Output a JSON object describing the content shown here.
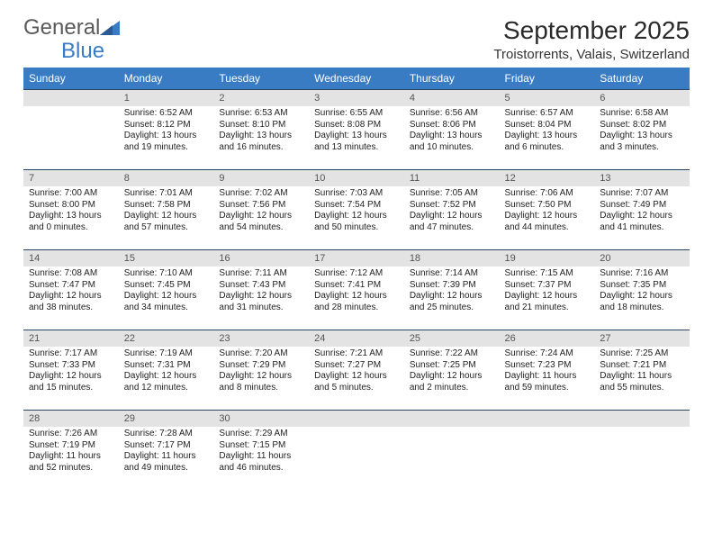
{
  "brand": {
    "part1": "General",
    "part2": "Blue"
  },
  "title": "September 2025",
  "location": "Troistorrents, Valais, Switzerland",
  "colors": {
    "header_bg": "#3a7cc4",
    "daynum_bg": "#e3e3e3",
    "row_border": "#2a4560",
    "text": "#222222"
  },
  "fonts": {
    "body_pt": 10,
    "header_pt": 12,
    "title_pt": 28,
    "location_pt": 15
  },
  "day_headers": [
    "Sunday",
    "Monday",
    "Tuesday",
    "Wednesday",
    "Thursday",
    "Friday",
    "Saturday"
  ],
  "weeks": [
    [
      {
        "n": "",
        "sr": "",
        "ss": "",
        "dl": ""
      },
      {
        "n": "1",
        "sr": "Sunrise: 6:52 AM",
        "ss": "Sunset: 8:12 PM",
        "dl": "Daylight: 13 hours and 19 minutes."
      },
      {
        "n": "2",
        "sr": "Sunrise: 6:53 AM",
        "ss": "Sunset: 8:10 PM",
        "dl": "Daylight: 13 hours and 16 minutes."
      },
      {
        "n": "3",
        "sr": "Sunrise: 6:55 AM",
        "ss": "Sunset: 8:08 PM",
        "dl": "Daylight: 13 hours and 13 minutes."
      },
      {
        "n": "4",
        "sr": "Sunrise: 6:56 AM",
        "ss": "Sunset: 8:06 PM",
        "dl": "Daylight: 13 hours and 10 minutes."
      },
      {
        "n": "5",
        "sr": "Sunrise: 6:57 AM",
        "ss": "Sunset: 8:04 PM",
        "dl": "Daylight: 13 hours and 6 minutes."
      },
      {
        "n": "6",
        "sr": "Sunrise: 6:58 AM",
        "ss": "Sunset: 8:02 PM",
        "dl": "Daylight: 13 hours and 3 minutes."
      }
    ],
    [
      {
        "n": "7",
        "sr": "Sunrise: 7:00 AM",
        "ss": "Sunset: 8:00 PM",
        "dl": "Daylight: 13 hours and 0 minutes."
      },
      {
        "n": "8",
        "sr": "Sunrise: 7:01 AM",
        "ss": "Sunset: 7:58 PM",
        "dl": "Daylight: 12 hours and 57 minutes."
      },
      {
        "n": "9",
        "sr": "Sunrise: 7:02 AM",
        "ss": "Sunset: 7:56 PM",
        "dl": "Daylight: 12 hours and 54 minutes."
      },
      {
        "n": "10",
        "sr": "Sunrise: 7:03 AM",
        "ss": "Sunset: 7:54 PM",
        "dl": "Daylight: 12 hours and 50 minutes."
      },
      {
        "n": "11",
        "sr": "Sunrise: 7:05 AM",
        "ss": "Sunset: 7:52 PM",
        "dl": "Daylight: 12 hours and 47 minutes."
      },
      {
        "n": "12",
        "sr": "Sunrise: 7:06 AM",
        "ss": "Sunset: 7:50 PM",
        "dl": "Daylight: 12 hours and 44 minutes."
      },
      {
        "n": "13",
        "sr": "Sunrise: 7:07 AM",
        "ss": "Sunset: 7:49 PM",
        "dl": "Daylight: 12 hours and 41 minutes."
      }
    ],
    [
      {
        "n": "14",
        "sr": "Sunrise: 7:08 AM",
        "ss": "Sunset: 7:47 PM",
        "dl": "Daylight: 12 hours and 38 minutes."
      },
      {
        "n": "15",
        "sr": "Sunrise: 7:10 AM",
        "ss": "Sunset: 7:45 PM",
        "dl": "Daylight: 12 hours and 34 minutes."
      },
      {
        "n": "16",
        "sr": "Sunrise: 7:11 AM",
        "ss": "Sunset: 7:43 PM",
        "dl": "Daylight: 12 hours and 31 minutes."
      },
      {
        "n": "17",
        "sr": "Sunrise: 7:12 AM",
        "ss": "Sunset: 7:41 PM",
        "dl": "Daylight: 12 hours and 28 minutes."
      },
      {
        "n": "18",
        "sr": "Sunrise: 7:14 AM",
        "ss": "Sunset: 7:39 PM",
        "dl": "Daylight: 12 hours and 25 minutes."
      },
      {
        "n": "19",
        "sr": "Sunrise: 7:15 AM",
        "ss": "Sunset: 7:37 PM",
        "dl": "Daylight: 12 hours and 21 minutes."
      },
      {
        "n": "20",
        "sr": "Sunrise: 7:16 AM",
        "ss": "Sunset: 7:35 PM",
        "dl": "Daylight: 12 hours and 18 minutes."
      }
    ],
    [
      {
        "n": "21",
        "sr": "Sunrise: 7:17 AM",
        "ss": "Sunset: 7:33 PM",
        "dl": "Daylight: 12 hours and 15 minutes."
      },
      {
        "n": "22",
        "sr": "Sunrise: 7:19 AM",
        "ss": "Sunset: 7:31 PM",
        "dl": "Daylight: 12 hours and 12 minutes."
      },
      {
        "n": "23",
        "sr": "Sunrise: 7:20 AM",
        "ss": "Sunset: 7:29 PM",
        "dl": "Daylight: 12 hours and 8 minutes."
      },
      {
        "n": "24",
        "sr": "Sunrise: 7:21 AM",
        "ss": "Sunset: 7:27 PM",
        "dl": "Daylight: 12 hours and 5 minutes."
      },
      {
        "n": "25",
        "sr": "Sunrise: 7:22 AM",
        "ss": "Sunset: 7:25 PM",
        "dl": "Daylight: 12 hours and 2 minutes."
      },
      {
        "n": "26",
        "sr": "Sunrise: 7:24 AM",
        "ss": "Sunset: 7:23 PM",
        "dl": "Daylight: 11 hours and 59 minutes."
      },
      {
        "n": "27",
        "sr": "Sunrise: 7:25 AM",
        "ss": "Sunset: 7:21 PM",
        "dl": "Daylight: 11 hours and 55 minutes."
      }
    ],
    [
      {
        "n": "28",
        "sr": "Sunrise: 7:26 AM",
        "ss": "Sunset: 7:19 PM",
        "dl": "Daylight: 11 hours and 52 minutes."
      },
      {
        "n": "29",
        "sr": "Sunrise: 7:28 AM",
        "ss": "Sunset: 7:17 PM",
        "dl": "Daylight: 11 hours and 49 minutes."
      },
      {
        "n": "30",
        "sr": "Sunrise: 7:29 AM",
        "ss": "Sunset: 7:15 PM",
        "dl": "Daylight: 11 hours and 46 minutes."
      },
      {
        "n": "",
        "sr": "",
        "ss": "",
        "dl": ""
      },
      {
        "n": "",
        "sr": "",
        "ss": "",
        "dl": ""
      },
      {
        "n": "",
        "sr": "",
        "ss": "",
        "dl": ""
      },
      {
        "n": "",
        "sr": "",
        "ss": "",
        "dl": ""
      }
    ]
  ]
}
